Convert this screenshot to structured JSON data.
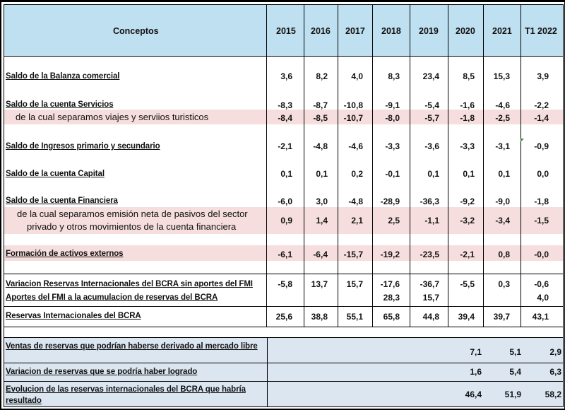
{
  "header": {
    "conceptos": "Conceptos",
    "years": [
      "2015",
      "2016",
      "2017",
      "2018",
      "2019",
      "2020",
      "2021",
      "T1 2022"
    ]
  },
  "rows": [
    {
      "label": "Saldo de la Balanza comercial",
      "values": [
        "3,6",
        "8,2",
        "4,0",
        "8,3",
        "23,4",
        "8,5",
        "15,3",
        "3,9"
      ]
    },
    {
      "label": "Saldo de la cuenta Servicios",
      "values": [
        "-8,3",
        "-8,7",
        "-10,8",
        "-9,1",
        "-5,4",
        "-1,6",
        "-4,6",
        "-2,2"
      ]
    },
    {
      "label": "de la cual separamos viajes y serviios turisticos",
      "values": [
        "-8,4",
        "-8,5",
        "-10,7",
        "-8,0",
        "-5,7",
        "-1,8",
        "-2,5",
        "-1,4"
      ]
    },
    {
      "label": "Saldo de Ingresos primario y secundario",
      "values": [
        "-2,1",
        "-4,8",
        "-4,6",
        "-3,3",
        "-3,6",
        "-3,3",
        "-3,1",
        "-0,9"
      ]
    },
    {
      "label": "Saldo de la cuenta Capital",
      "values": [
        "0,1",
        "0,1",
        "0,2",
        "-0,1",
        "0,1",
        "0,1",
        "0,1",
        "0,0"
      ]
    },
    {
      "label": "Saldo de la cuenta Financiera",
      "values": [
        "-6,0",
        "3,0",
        "-4,8",
        "-28,9",
        "-36,3",
        "-9,2",
        "-9,0",
        "-1,8"
      ]
    },
    {
      "label_line1": "de la cual separamos emisión neta de pasivos del sector",
      "label_line2": "privado y otros movimientos de la cuenta financiera",
      "values": [
        "0,9",
        "1,4",
        "2,1",
        "2,5",
        "-1,1",
        "-3,2",
        "-3,4",
        "-1,5"
      ]
    },
    {
      "label": "Formación de activos externos",
      "values": [
        "-6,1",
        "-6,4",
        "-15,7",
        "-19,2",
        "-23,5",
        "-2,1",
        "0,8",
        "-0,0"
      ]
    },
    {
      "label": "Variacion Reservas Internacionales del BCRA sin aportes del FMI",
      "values": [
        "-5,8",
        "13,7",
        "15,7",
        "-17,6",
        "-36,7",
        "-5,5",
        "0,3",
        "-0,6"
      ]
    },
    {
      "label": "Aportes del FMI a la acumulacion de reservas del BCRA",
      "values": [
        "",
        "",
        "",
        "28,3",
        "15,7",
        "",
        "",
        "4,0"
      ]
    },
    {
      "label": "Reservas Internacionales del BCRA",
      "values": [
        "25,6",
        "38,8",
        "55,1",
        "65,8",
        "44,8",
        "39,4",
        "39,7",
        "43,1"
      ]
    }
  ],
  "bottom_rows": [
    {
      "label": "Ventas de reservas que podrían haberse derivado al mercado libre",
      "values": [
        "7,1",
        "5,1",
        "2,9"
      ]
    },
    {
      "label": "Variacion de reservas que se podría haber logrado",
      "values": [
        "1,6",
        "5,4",
        "6,3"
      ]
    },
    {
      "label": "Evolucion de las reservas internacionales  del BCRA que habría resultado",
      "values": [
        "46,4",
        "51,9",
        "58,2"
      ]
    }
  ],
  "colors": {
    "header_band": "#bfe0f0",
    "pink_band": "#f6dede",
    "blue_band": "#dbe6f1"
  }
}
